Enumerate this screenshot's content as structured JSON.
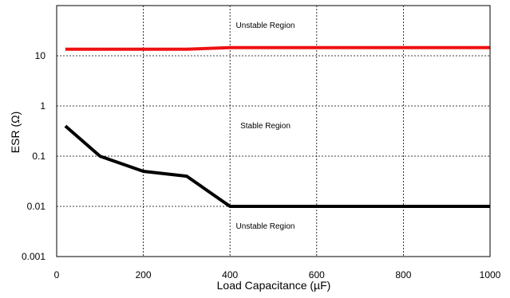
{
  "chart_data": {
    "type": "line",
    "title": "",
    "xlabel": "Load Capacitance (µF)",
    "ylabel": "ESR (Ω)",
    "xlim": [
      0,
      1000
    ],
    "ylim": [
      0.001,
      100
    ],
    "yscale": "log",
    "grid": true,
    "x_ticks": [
      0,
      200,
      400,
      600,
      800,
      1000
    ],
    "x_tick_labels": [
      "0",
      "200",
      "400",
      "600",
      "800",
      "1000"
    ],
    "y_ticks": [
      0.001,
      0.01,
      0.1,
      1,
      10
    ],
    "y_tick_labels": [
      "0.001",
      "0.01",
      "0.1",
      "1",
      "10"
    ],
    "series": [
      {
        "color": "#ee1111",
        "x": [
          20,
          300,
          400,
          1000
        ],
        "y": [
          13.5,
          13.5,
          14.5,
          14.5
        ]
      },
      {
        "color": "#000000",
        "x": [
          20,
          100,
          200,
          300,
          400,
          1000
        ],
        "y": [
          0.4,
          0.1,
          0.05,
          0.04,
          0.01,
          0.01
        ]
      }
    ],
    "annotations": [
      {
        "text": "Unstable Region",
        "x": 500,
        "y": 40
      },
      {
        "text": "Stable Region",
        "x": 500,
        "y": 0.4
      },
      {
        "text": "Unstable Region",
        "x": 500,
        "y": 0.004
      }
    ]
  }
}
